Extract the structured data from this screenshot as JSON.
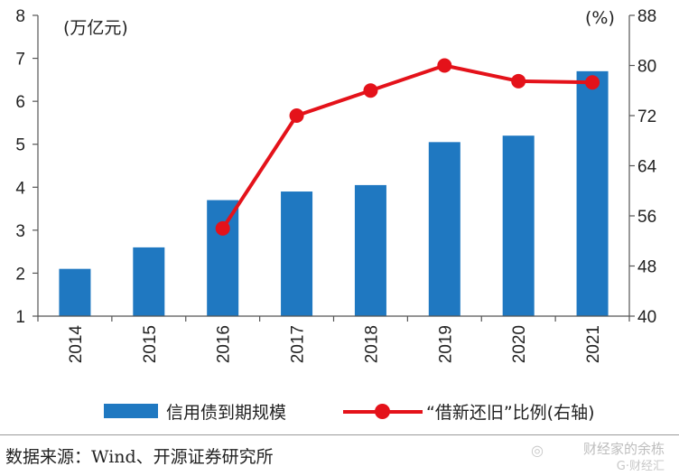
{
  "chart_data": {
    "type": "bar",
    "categories": [
      "2014",
      "2015",
      "2016",
      "2017",
      "2018",
      "2019",
      "2020",
      "2021"
    ],
    "series": [
      {
        "name": "信用债到期规模",
        "type": "bar",
        "axis": "left",
        "color": "#1f78c1",
        "values": [
          2.1,
          2.6,
          3.7,
          3.9,
          4.05,
          5.05,
          5.2,
          6.7
        ]
      },
      {
        "name": "“借新还旧”比例(右轴)",
        "type": "line",
        "axis": "right",
        "color": "#e4121a",
        "values": [
          null,
          null,
          54,
          72,
          76,
          80,
          77.5,
          77.3
        ]
      }
    ],
    "left_axis": {
      "unit_label": "(万亿元)",
      "ylim": [
        1,
        8
      ],
      "ticks": [
        1,
        2,
        3,
        4,
        5,
        6,
        7,
        8
      ]
    },
    "right_axis": {
      "unit_label": "(%)",
      "ylim": [
        40,
        88
      ],
      "ticks": [
        40,
        48,
        56,
        64,
        72,
        80,
        88
      ]
    },
    "legend_position": "bottom",
    "grid": false
  },
  "legend": {
    "bar_label": "信用债到期规模",
    "line_label": "“借新还旧”比例(右轴)"
  },
  "source_text": "数据来源：Wind、开源证券研究所",
  "watermark": {
    "text": "财经家的余栋",
    "sub": "G·财经汇"
  }
}
